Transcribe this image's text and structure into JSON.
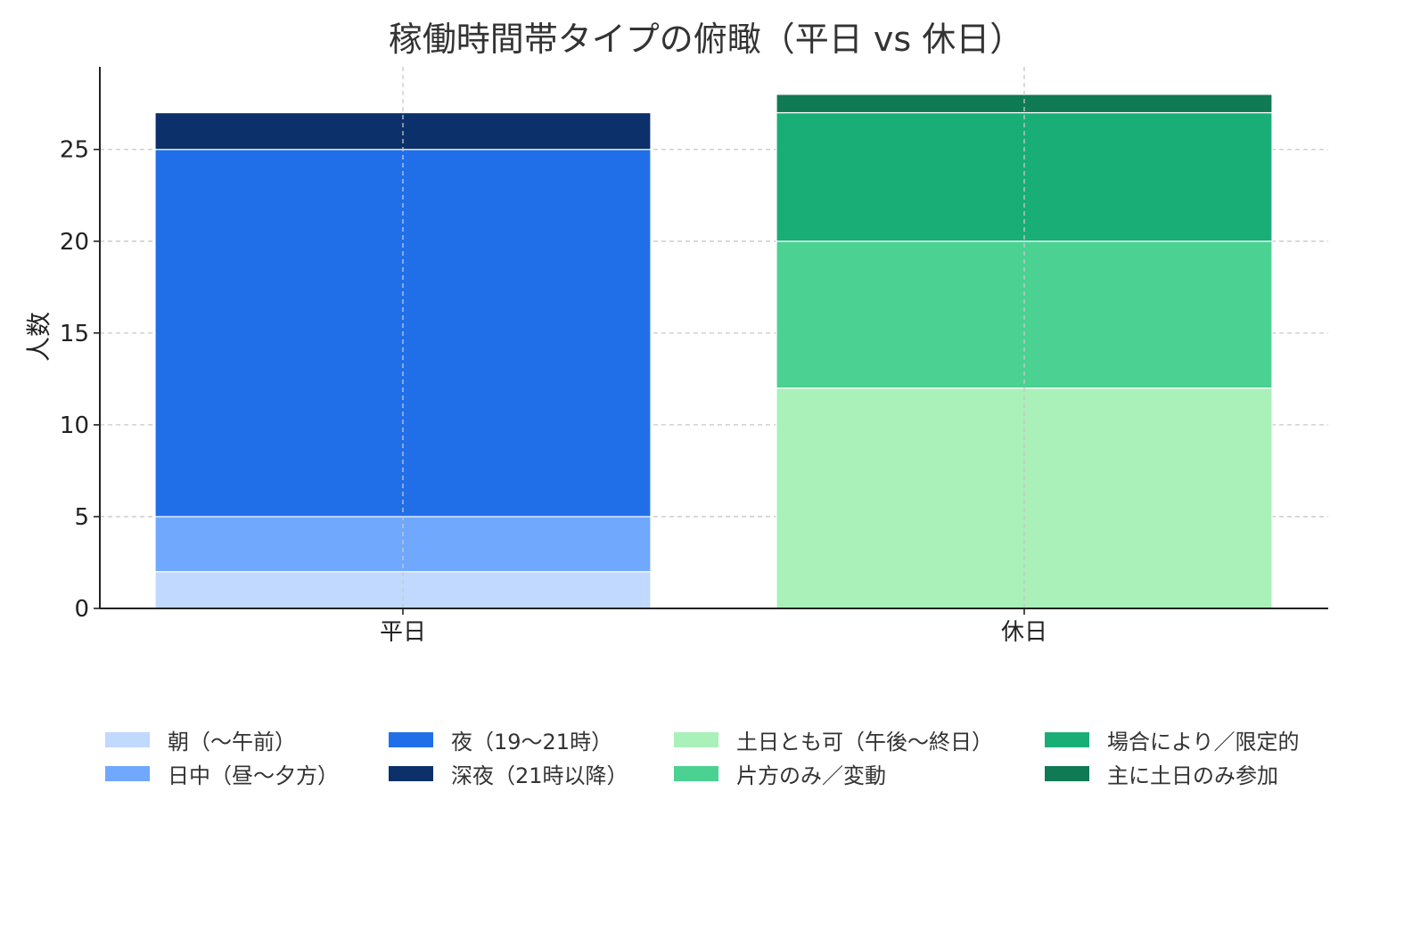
{
  "chart_data": {
    "type": "bar",
    "stacked": true,
    "title": "稼働時間帯タイプの俯瞰（平日 vs 休日）",
    "xlabel": "",
    "ylabel": "人数",
    "ylim": [
      0,
      29.5
    ],
    "yticks": [
      0,
      5,
      10,
      15,
      20,
      25
    ],
    "grid": true,
    "legend_position": "bottom",
    "categories": [
      "平日",
      "休日"
    ],
    "series": [
      {
        "name": "朝（〜午前）",
        "color": "#c1d8ff",
        "values": [
          2,
          0
        ]
      },
      {
        "name": "日中（昼〜夕方）",
        "color": "#6fa8fd",
        "values": [
          3,
          0
        ]
      },
      {
        "name": "夜（19〜21時）",
        "color": "#206fe8",
        "values": [
          20,
          0
        ]
      },
      {
        "name": "深夜（21時以降）",
        "color": "#0b306a",
        "values": [
          2,
          0
        ]
      },
      {
        "name": "土日とも可（午後〜終日）",
        "color": "#a9f0b9",
        "values": [
          0,
          12
        ]
      },
      {
        "name": "片方のみ／変動",
        "color": "#4bd192",
        "values": [
          0,
          8
        ]
      },
      {
        "name": "場合により／限定的",
        "color": "#1aae77",
        "values": [
          0,
          7
        ]
      },
      {
        "name": "主に土日のみ参加",
        "color": "#0f7a53",
        "values": [
          0,
          1
        ]
      }
    ]
  }
}
